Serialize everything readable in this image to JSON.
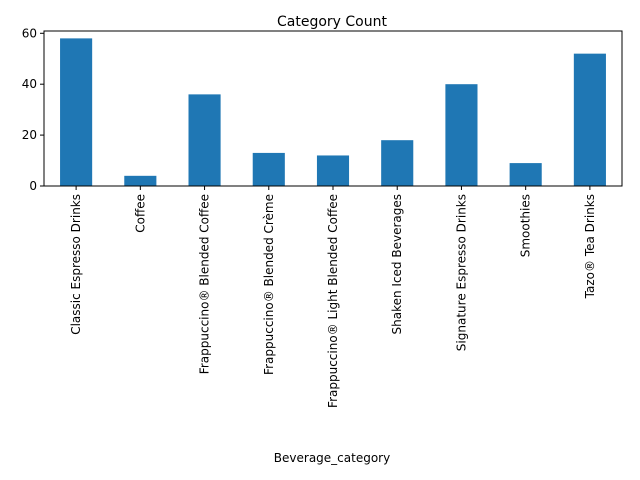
{
  "chart_data": {
    "type": "bar",
    "title": "Category Count",
    "xlabel": "Beverage_category",
    "ylabel": "",
    "categories": [
      "Classic Espresso Drinks",
      "Coffee",
      "Frappuccino® Blended Coffee",
      "Frappuccino® Blended Crème",
      "Frappuccino® Light Blended Coffee",
      "Shaken Iced Beverages",
      "Signature Espresso Drinks",
      "Smoothies",
      "Tazo® Tea Drinks"
    ],
    "values": [
      58,
      4,
      36,
      13,
      12,
      18,
      40,
      9,
      52
    ],
    "ylim": [
      0,
      60.9
    ],
    "yticks": [
      "0",
      "20",
      "40",
      "60"
    ],
    "grid": false,
    "bar_color": "#1f77b4"
  }
}
